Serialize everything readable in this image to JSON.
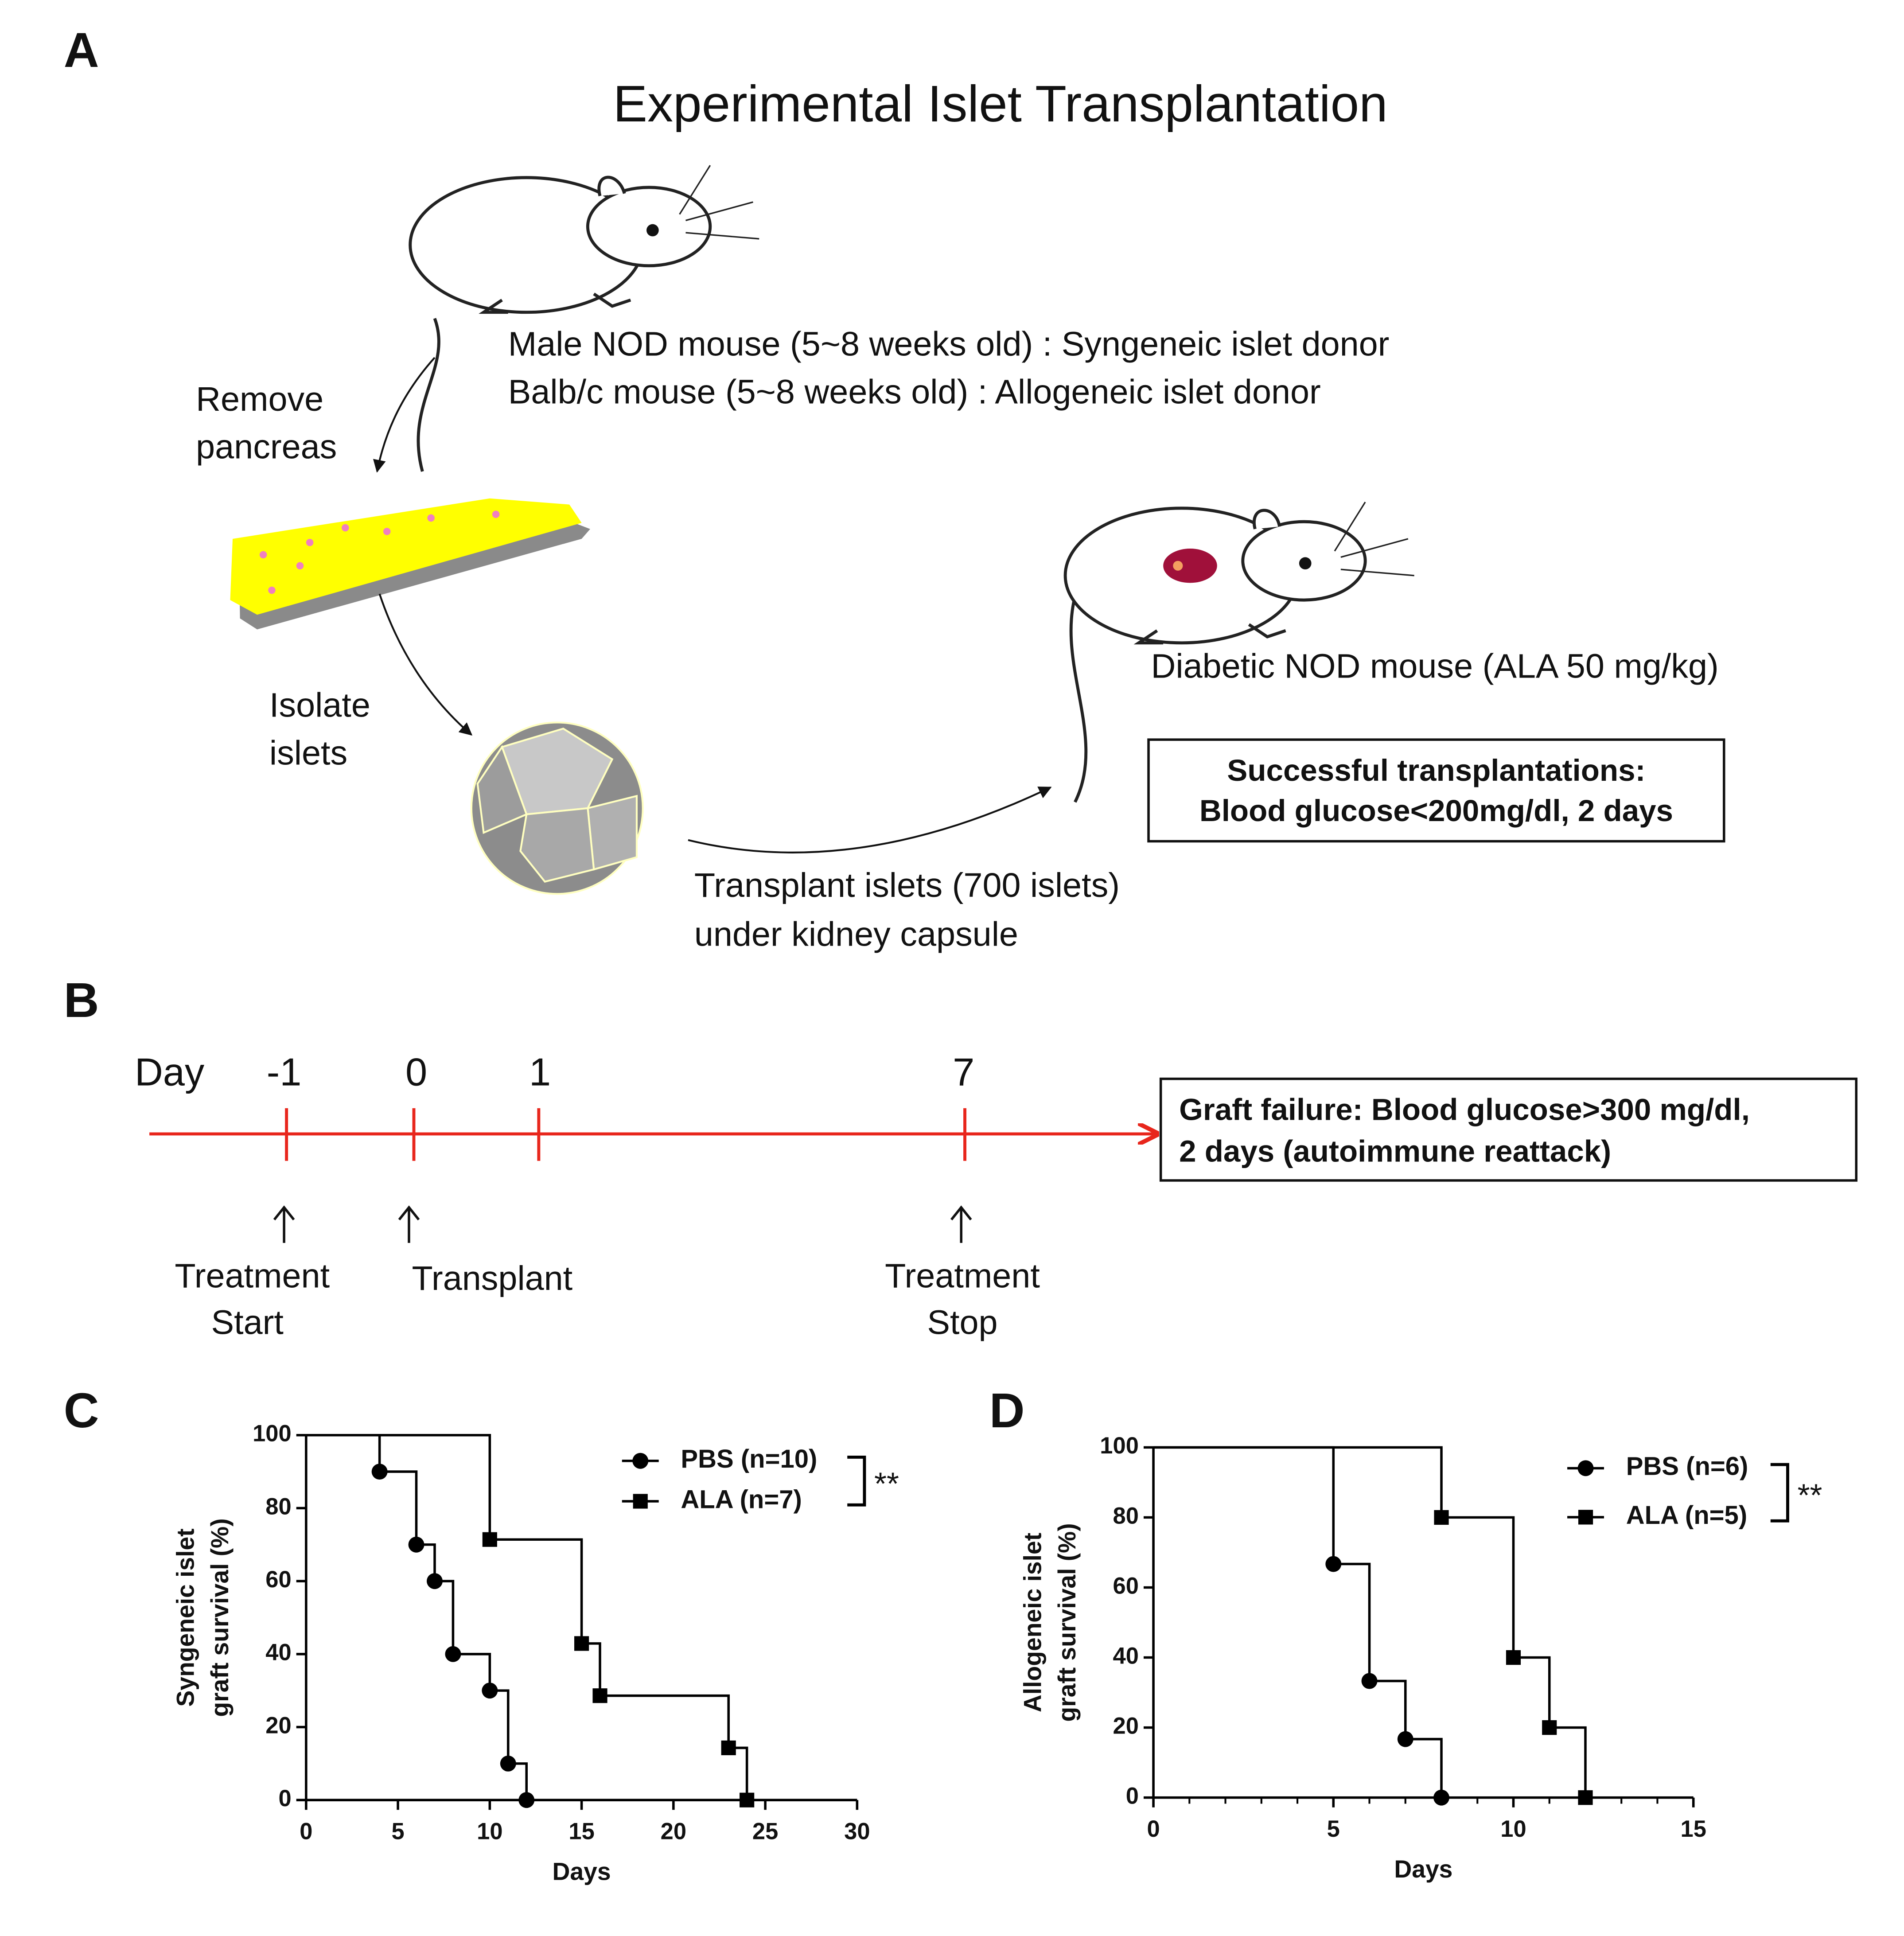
{
  "panel_a": {
    "letter": "A",
    "title": "Experimental Islet Transplantation",
    "donor_lines": [
      "Male NOD mouse (5~8 weeks old) : Syngeneic islet donor",
      "Balb/c mouse (5~8 weeks old) : Allogeneic islet donor"
    ],
    "step1": [
      "Remove",
      "pancreas"
    ],
    "step2": [
      "Isolate",
      "islets"
    ],
    "recipient": "Diabetic NOD mouse (ALA 50 mg/kg)",
    "success_box": [
      "Successful transplantations:",
      "Blood glucose<200mg/dl, 2 days"
    ],
    "step3": [
      "Transplant islets (700 islets)",
      "under kidney capsule"
    ]
  },
  "panel_b": {
    "letter": "B",
    "axis_label": "Day",
    "timeline_labels": [
      "-1",
      "0",
      "1",
      "7"
    ],
    "events": [
      [
        "Treatment",
        "Start"
      ],
      [
        "Transplant"
      ],
      [
        "Treatment",
        "Stop"
      ]
    ],
    "failure_box": [
      "Graft failure: Blood glucose>300 mg/dl,",
      "2 days (autoimmune reattack)"
    ]
  },
  "chart_data": [
    {
      "type": "step",
      "panel": "C",
      "xlabel": "Days",
      "ylabel": [
        "Syngeneic islet",
        "graft survival (%)"
      ],
      "xlim": [
        0,
        30
      ],
      "xticks": [
        0,
        5,
        10,
        15,
        20,
        25,
        30
      ],
      "ylim": [
        0,
        100
      ],
      "yticks": [
        0,
        20,
        40,
        60,
        80,
        100
      ],
      "annotation": "**",
      "series": [
        {
          "name": "PBS (n=10)",
          "color": "#000000",
          "marker": "circle",
          "x": [
            0,
            4,
            6,
            7,
            8,
            10,
            11,
            12
          ],
          "values": [
            100,
            90,
            70,
            60,
            40,
            30,
            10,
            0
          ]
        },
        {
          "name": "ALA (n=7)",
          "color": "#000000",
          "marker": "square",
          "x": [
            0,
            10,
            15,
            16,
            23,
            24
          ],
          "values": [
            100,
            71.4,
            42.9,
            28.6,
            14.3,
            0
          ]
        }
      ]
    },
    {
      "type": "step",
      "panel": "D",
      "xlabel": "Days",
      "ylabel": [
        "Allogeneic islet",
        "graft survival (%)"
      ],
      "xlim": [
        0,
        15
      ],
      "xticks": [
        0,
        5,
        10,
        15
      ],
      "xminorticks": [
        1,
        2,
        3,
        4,
        6,
        7,
        8,
        9,
        11,
        12,
        13,
        14
      ],
      "ylim": [
        0,
        100
      ],
      "yticks": [
        0,
        20,
        40,
        60,
        80,
        100
      ],
      "annotation": "**",
      "series": [
        {
          "name": "PBS (n=6)",
          "color": "#000000",
          "marker": "circle",
          "x": [
            0,
            5,
            6,
            7,
            8
          ],
          "values": [
            100,
            66.7,
            33.3,
            16.7,
            0
          ]
        },
        {
          "name": "ALA (n=5)",
          "color": "#000000",
          "marker": "square",
          "x": [
            0,
            8,
            10,
            11,
            12
          ],
          "values": [
            100,
            80,
            40,
            20,
            0
          ]
        }
      ]
    }
  ]
}
